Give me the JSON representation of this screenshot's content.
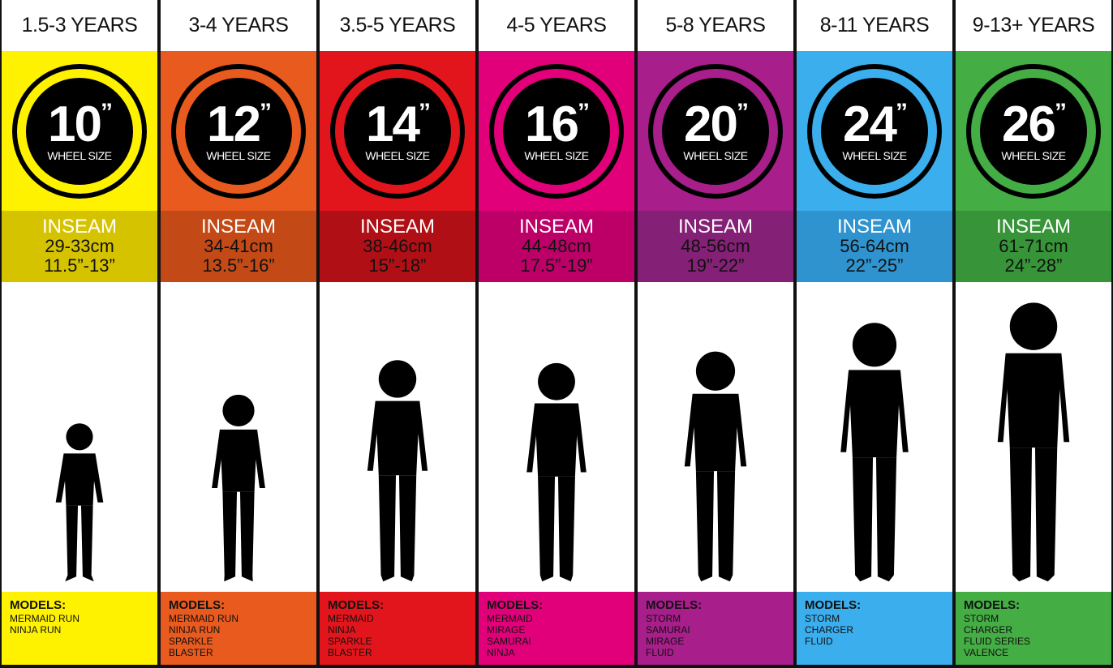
{
  "columns": [
    {
      "age": "1.5-3 YEARS",
      "size": "10",
      "wheel_label": "WHEEL SIZE",
      "inseam_label": "INSEAM",
      "inseam_cm": "29-33cm",
      "inseam_in": "11.5”-13”",
      "models_label": "MODELS:",
      "models": [
        "MERMAID RUN",
        "NINJA RUN"
      ],
      "color": "#fff200",
      "dark": "#d6c300",
      "fig_height": 0.55
    },
    {
      "age": "3-4 YEARS",
      "size": "12",
      "wheel_label": "WHEEL SIZE",
      "inseam_label": "INSEAM",
      "inseam_cm": "34-41cm",
      "inseam_in": "13.5”-16”",
      "models_label": "MODELS:",
      "models": [
        "MERMAID RUN",
        "NINJA RUN",
        "SPARKLE",
        "BLASTER"
      ],
      "color": "#e85a1e",
      "dark": "#c34a17",
      "fig_height": 0.65
    },
    {
      "age": "3.5-5 YEARS",
      "size": "14",
      "wheel_label": "WHEEL SIZE",
      "inseam_label": "INSEAM",
      "inseam_cm": "38-46cm",
      "inseam_in": "15”-18”",
      "models_label": "MODELS:",
      "models": [
        "MERMAID",
        "NINJA",
        "SPARKLE",
        "BLASTER"
      ],
      "color": "#e3151c",
      "dark": "#b01015",
      "fig_height": 0.77
    },
    {
      "age": "4-5 YEARS",
      "size": "16",
      "wheel_label": "WHEEL SIZE",
      "inseam_label": "INSEAM",
      "inseam_cm": "44-48cm",
      "inseam_in": "17.5”-19”",
      "models_label": "MODELS:",
      "models": [
        "MERMAID",
        "MIRAGE",
        "SAMURAI",
        "NINJA"
      ],
      "color": "#e2007a",
      "dark": "#bd0068",
      "fig_height": 0.76
    },
    {
      "age": "5-8 YEARS",
      "size": "20",
      "wheel_label": "WHEEL SIZE",
      "inseam_label": "INSEAM",
      "inseam_cm": "48-56cm",
      "inseam_in": "19”-22”",
      "models_label": "MODELS:",
      "models": [
        "STORM",
        "SAMURAI",
        "MIRAGE",
        "FLUID"
      ],
      "color": "#a81e8a",
      "dark": "#842075",
      "fig_height": 0.8
    },
    {
      "age": "8-11 YEARS",
      "size": "24",
      "wheel_label": "WHEEL SIZE",
      "inseam_label": "INSEAM",
      "inseam_cm": "56-64cm",
      "inseam_in": "22”-25”",
      "models_label": "MODELS:",
      "models": [
        "STORM",
        "CHARGER",
        "FLUID"
      ],
      "color": "#3baeee",
      "dark": "#2f93cf",
      "fig_height": 0.9
    },
    {
      "age": "9-13+ YEARS",
      "size": "26",
      "wheel_label": "WHEEL SIZE",
      "inseam_label": "INSEAM",
      "inseam_cm": "61-71cm",
      "inseam_in": "24”-28”",
      "models_label": "MODELS:",
      "models": [
        "STORM",
        "CHARGER",
        "FLUID SERIES",
        "VALENCE"
      ],
      "color": "#44ad44",
      "dark": "#379438",
      "fig_height": 0.97
    }
  ]
}
